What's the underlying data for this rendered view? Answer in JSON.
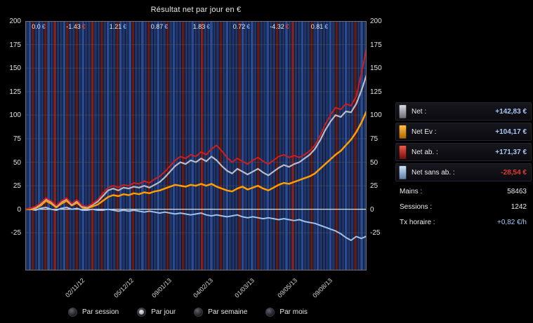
{
  "title": "Résultat net par jour en €",
  "chart_data": {
    "type": "line",
    "title": "Résultat net par jour en €",
    "xlabel": "",
    "ylabel": "€",
    "ylim": [
      -65,
      200
    ],
    "yticks": [
      200,
      175,
      150,
      125,
      100,
      75,
      50,
      25,
      0,
      -25
    ],
    "grid": true,
    "legend_position": "right",
    "x_dates": [
      {
        "label": "02/11/12",
        "pos": 0.163
      },
      {
        "label": "05/12/12",
        "pos": 0.306
      },
      {
        "label": "09/01/13",
        "pos": 0.418
      },
      {
        "label": "04/02/13",
        "pos": 0.54
      },
      {
        "label": "01/03/13",
        "pos": 0.66
      },
      {
        "label": "09/05/13",
        "pos": 0.786
      },
      {
        "label": "09/08/13",
        "pos": 0.888
      }
    ],
    "top_annotations": [
      {
        "text": "0.0",
        "currency": "€",
        "pos": 0.04,
        "negative": false
      },
      {
        "text": "-1.43",
        "currency": "€",
        "pos": 0.149,
        "negative": true
      },
      {
        "text": "1.21",
        "currency": "€",
        "pos": 0.271,
        "negative": false
      },
      {
        "text": "0.87",
        "currency": "€",
        "pos": 0.394,
        "negative": false
      },
      {
        "text": "1.83",
        "currency": "€",
        "pos": 0.516,
        "negative": false
      },
      {
        "text": "0.72",
        "currency": "€",
        "pos": 0.633,
        "negative": false
      },
      {
        "text": "-4.32",
        "currency": "€",
        "pos": 0.745,
        "negative": true
      },
      {
        "text": "0.81",
        "currency": "€",
        "pos": 0.863,
        "negative": false
      }
    ],
    "annotation_colors": {
      "positive": "#6f9fe8",
      "negative": "#e03a2a"
    },
    "series": [
      {
        "name": "Net sans ab.",
        "color": "#9fc2e8",
        "width": 2,
        "values": [
          0,
          0,
          -1,
          1,
          2,
          0,
          -1,
          1,
          2,
          0,
          1,
          -1,
          -1,
          0,
          -1,
          -1,
          0,
          -1,
          -2,
          -1,
          -2,
          -1,
          -2,
          -3,
          -2,
          -3,
          -4,
          -3,
          -4,
          -5,
          -4,
          -5,
          -6,
          -5,
          -4,
          -6,
          -7,
          -6,
          -7,
          -8,
          -7,
          -6,
          -8,
          -9,
          -8,
          -9,
          -10,
          -9,
          -10,
          -11,
          -10,
          -11,
          -12,
          -11,
          -13,
          -14,
          -15,
          -17,
          -19,
          -21,
          -23,
          -26,
          -30,
          -33,
          -29,
          -31,
          -28.54
        ]
      },
      {
        "name": "Net Ev",
        "color": "#ff9c00",
        "width": 2.5,
        "values": [
          0,
          0,
          1,
          4,
          9,
          6,
          2,
          6,
          9,
          4,
          7,
          2,
          1,
          3,
          5,
          9,
          13,
          15,
          14,
          16,
          15,
          17,
          16,
          18,
          17,
          19,
          20,
          22,
          24,
          26,
          25,
          24,
          26,
          25,
          27,
          25,
          27,
          24,
          22,
          20,
          19,
          22,
          24,
          21,
          23,
          25,
          22,
          20,
          23,
          26,
          28,
          27,
          29,
          31,
          33,
          35,
          38,
          43,
          48,
          53,
          58,
          62,
          68,
          74,
          82,
          92,
          104.17
        ]
      },
      {
        "name": "Net",
        "color": "#b9bac4",
        "width": 2.2,
        "values": [
          0,
          1,
          2,
          6,
          11,
          8,
          3,
          8,
          11,
          5,
          9,
          3,
          2,
          5,
          8,
          14,
          20,
          22,
          20,
          23,
          22,
          24,
          23,
          25,
          23,
          26,
          29,
          34,
          40,
          46,
          50,
          48,
          52,
          50,
          54,
          51,
          56,
          52,
          46,
          41,
          38,
          43,
          40,
          37,
          40,
          43,
          39,
          36,
          40,
          44,
          47,
          45,
          48,
          50,
          54,
          58,
          64,
          73,
          84,
          93,
          100,
          98,
          104,
          103,
          112,
          126,
          142.83
        ]
      },
      {
        "name": "Net ab.",
        "color": "#cf1d1d",
        "width": 2,
        "values": [
          0,
          1,
          3,
          7,
          12,
          9,
          4,
          9,
          12,
          6,
          10,
          4,
          3,
          6,
          10,
          17,
          23,
          25,
          23,
          26,
          25,
          28,
          27,
          30,
          28,
          32,
          35,
          40,
          46,
          52,
          56,
          54,
          58,
          56,
          61,
          58,
          64,
          68,
          62,
          55,
          50,
          54,
          51,
          48,
          52,
          55,
          51,
          48,
          52,
          56,
          58,
          55,
          57,
          55,
          58,
          62,
          68,
          78,
          90,
          100,
          108,
          106,
          112,
          110,
          120,
          144,
          171.37
        ]
      }
    ],
    "background_pattern": "bBrbBbrBbRbbBrbbrbBbbRbbrbBbbrBbbBrbbBbrbbBbbrbBbbrbbBbbRbbBbbrbBbbbrBbbBbrbbBbbrbbBbRbbBbbrbBbbbBbrbbBbbrbBb",
    "stripe_colors": {
      "b": "#1f3569",
      "B": "#2a4a93",
      "r": "#5e1d1d",
      "R": "#7c2424",
      "d": "#0d0d16"
    },
    "zero_line_color": "#f0f0f0",
    "grid_color": "#5a5a66",
    "frame_color": "#6e6e78"
  },
  "legend": {
    "items": [
      {
        "label": "Net :",
        "value": "+142,83 €",
        "swatch_top": "#d9dae2",
        "swatch_bottom": "#6e707c",
        "value_color": "#a9c6f2"
      },
      {
        "label": "Net Ev :",
        "value": "+104,17 €",
        "swatch_top": "#ffc04a",
        "swatch_bottom": "#b36a00",
        "value_color": "#a9c6f2"
      },
      {
        "label": "Net ab. :",
        "value": "+171,37 €",
        "swatch_top": "#ef5a4a",
        "swatch_bottom": "#7e0f0f",
        "value_color": "#a9c6f2"
      },
      {
        "label": "Net sans ab. :",
        "value": "-28,54 €",
        "swatch_top": "#cfe2f8",
        "swatch_bottom": "#5f82ad",
        "value_color": "#e23b2e"
      }
    ],
    "stats": [
      {
        "label": "Mains :",
        "value": "58463",
        "value_color": "#e8e8e8"
      },
      {
        "label": "Sessions :",
        "value": "1242",
        "value_color": "#e8e8e8"
      },
      {
        "label": "Tx horaire :",
        "value": "+0,82 €/h",
        "value_color": "#a9c6f2"
      }
    ]
  },
  "controls": {
    "options": [
      {
        "label": "Par session",
        "selected": false
      },
      {
        "label": "Par jour",
        "selected": true
      },
      {
        "label": "Par semaine",
        "selected": false
      },
      {
        "label": "Par mois",
        "selected": false
      }
    ]
  }
}
